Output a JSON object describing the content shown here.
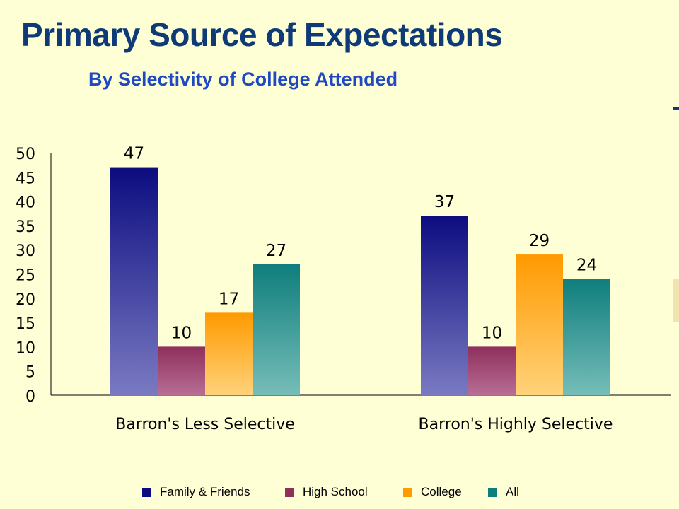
{
  "chart_data": {
    "type": "bar",
    "title": "Primary Source of Expectations",
    "subtitle": "By Selectivity of College Attended",
    "categories": [
      "Barron's Less Selective",
      "Barron's Highly Selective"
    ],
    "series": [
      {
        "name": "Family & Friends",
        "values": [
          47,
          37
        ],
        "color": "#0C0C80",
        "color_light": "#7A7AC2"
      },
      {
        "name": "High School",
        "values": [
          10,
          10
        ],
        "color": "#8E2F5C",
        "color_light": "#B86E95"
      },
      {
        "name": "College",
        "values": [
          17,
          29
        ],
        "color": "#FF9A00",
        "color_light": "#FFD27A"
      },
      {
        "name": "All",
        "values": [
          27,
          24
        ],
        "color": "#0E7E7C",
        "color_light": "#76BDB9"
      }
    ],
    "ylim": [
      0,
      50
    ],
    "yticks": [
      0,
      5,
      10,
      15,
      20,
      25,
      30,
      35,
      40,
      45,
      50
    ],
    "legend_position": "bottom",
    "grid": false
  }
}
